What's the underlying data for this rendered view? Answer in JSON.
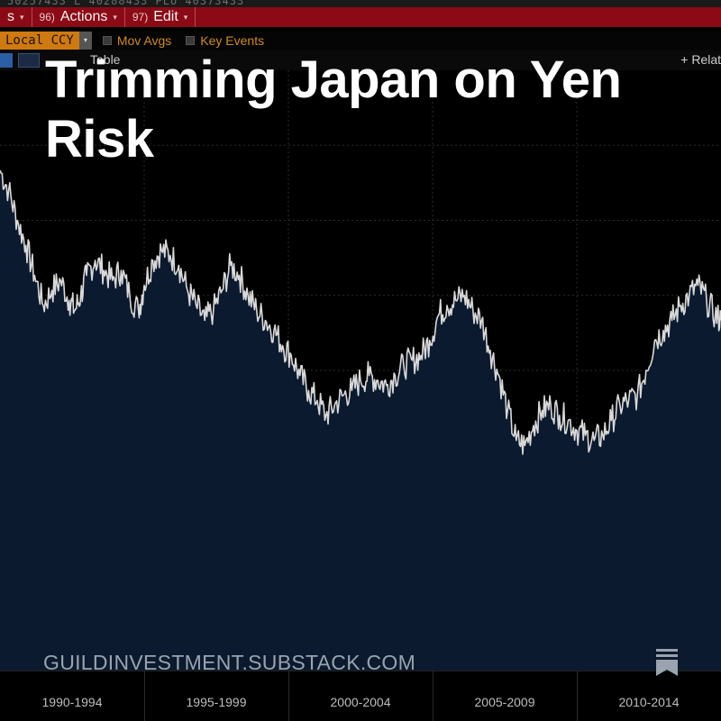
{
  "toolbar": {
    "ticker_text": "50257433 L 40288433 PLU 40373433",
    "menus": [
      {
        "num": "",
        "label": "s"
      },
      {
        "num": "96)",
        "label": "Actions"
      },
      {
        "num": "97)",
        "label": "Edit"
      }
    ],
    "currency": "Local CCY",
    "options": [
      "Mov Avgs",
      "Key Events"
    ],
    "row4": {
      "table_label": "Table",
      "relative_label": "+ Relat"
    }
  },
  "title": "Trimming Japan on Yen Risk",
  "footer": {
    "site": "GUILDINVESTMENT.SUBSTACK.COM"
  },
  "colors": {
    "background": "#000000",
    "line": "#d9d9d9",
    "area": "#0b1a2e",
    "grid": "#333333",
    "menu_bar": "#8b0a16",
    "currency": "#cf7a10"
  },
  "icons": [
    "bookmark-icon"
  ],
  "chart_data": {
    "type": "area",
    "title": "",
    "xlabel": "",
    "ylabel": "",
    "x_tick_labels": [
      "1990-1994",
      "1995-1999",
      "2000-2004",
      "2005-2009",
      "2010-2014"
    ],
    "xlim": [
      1990,
      2015
    ],
    "grid": true,
    "series": [
      {
        "x": [
          1990.0,
          1990.3,
          1990.6,
          1990.9,
          1991.2,
          1991.5,
          1991.8,
          1992.1,
          1992.4,
          1992.6,
          1992.8,
          1993.0,
          1993.3,
          1993.6,
          1993.9,
          1994.2,
          1994.5,
          1994.8,
          1995.0,
          1995.3,
          1995.6,
          1995.9,
          1996.2,
          1996.5,
          1996.8,
          1997.1,
          1997.4,
          1997.7,
          1998.0,
          1998.3,
          1998.6,
          1998.9,
          1999.2,
          1999.5,
          1999.8,
          2000.1,
          2000.4,
          2000.7,
          2001.0,
          2001.3,
          2001.6,
          2001.9,
          2002.2,
          2002.5,
          2002.8,
          2003.1,
          2003.4,
          2003.7,
          2004.0,
          2004.3,
          2004.6,
          2004.9,
          2005.2,
          2005.5,
          2005.8,
          2006.1,
          2006.4,
          2006.7,
          2007.0,
          2007.3,
          2007.6,
          2007.9,
          2008.2,
          2008.5,
          2008.8,
          2009.1,
          2009.4,
          2009.7,
          2010.0,
          2010.3,
          2010.6,
          2010.9,
          2011.2,
          2011.5,
          2011.8,
          2012.1,
          2012.4,
          2012.7,
          2013.0,
          2013.3,
          2013.6,
          2013.9,
          2014.2,
          2014.5,
          2014.8,
          2015.0
        ],
        "y": [
          100,
          96,
          90,
          85,
          79,
          73,
          76,
          78,
          74,
          72,
          75,
          79,
          82,
          80,
          78,
          80,
          75,
          72,
          77,
          82,
          84,
          83,
          81,
          76,
          73,
          70,
          72,
          76,
          81,
          79,
          75,
          72,
          70,
          68,
          65,
          63,
          59,
          56,
          54,
          51,
          53,
          55,
          56,
          58,
          59,
          58,
          57,
          59,
          61,
          62,
          63,
          66,
          71,
          73,
          74,
          75,
          72,
          70,
          64,
          59,
          52,
          46,
          45,
          49,
          52,
          53,
          51,
          50,
          48,
          47,
          46,
          47,
          50,
          53,
          54,
          55,
          60,
          66,
          68,
          70,
          73,
          75,
          77,
          74,
          71,
          70
        ]
      }
    ]
  }
}
